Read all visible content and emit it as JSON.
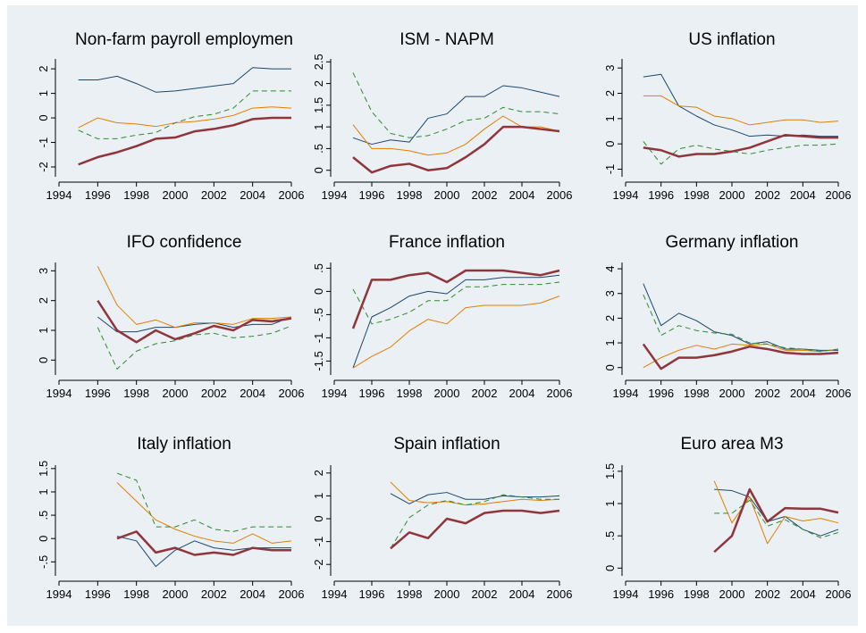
{
  "chart_data": [
    {
      "type": "line",
      "title": "Non-farm payroll employmen",
      "x": [
        1995,
        1996,
        1997,
        1998,
        1999,
        2000,
        2001,
        2002,
        2003,
        2004,
        2005,
        2006
      ],
      "xlim": [
        1994,
        2006
      ],
      "xticks": [
        1994,
        1996,
        1998,
        2000,
        2002,
        2004,
        2006
      ],
      "ylim": [
        -2.4,
        2.55
      ],
      "yticks": [
        -2,
        -1,
        0,
        1,
        2
      ],
      "series": [
        {
          "color": "#1a476f",
          "width": 1,
          "dash": false,
          "values": [
            1.55,
            1.55,
            1.7,
            1.4,
            1.05,
            1.1,
            1.2,
            1.3,
            1.4,
            2.05,
            2.0,
            2.0
          ]
        },
        {
          "color": "#e37e00",
          "width": 1,
          "dash": false,
          "values": [
            -0.4,
            0.0,
            -0.2,
            -0.25,
            -0.35,
            -0.2,
            -0.15,
            -0.05,
            0.1,
            0.4,
            0.45,
            0.4
          ]
        },
        {
          "color": "#2e8b2e",
          "width": 1,
          "dash": true,
          "values": [
            -0.5,
            -0.85,
            -0.85,
            -0.7,
            -0.6,
            -0.2,
            0.05,
            0.15,
            0.4,
            1.1,
            1.1,
            1.1
          ]
        },
        {
          "color": "#90353b",
          "width": 2.5,
          "dash": false,
          "values": [
            -1.9,
            -1.6,
            -1.4,
            -1.15,
            -0.85,
            -0.8,
            -0.55,
            -0.45,
            -0.3,
            -0.05,
            0.0,
            0.0
          ]
        }
      ]
    },
    {
      "type": "line",
      "title": "ISM - NAPM",
      "x": [
        1995,
        1996,
        1997,
        1998,
        1999,
        2000,
        2001,
        2002,
        2003,
        2004,
        2005,
        2006
      ],
      "xlim": [
        1994,
        2006
      ],
      "xticks": [
        1994,
        1996,
        1998,
        2000,
        2002,
        2004,
        2006
      ],
      "ylim": [
        -0.15,
        2.65
      ],
      "yticks": [
        0,
        {
          "value": 0.5,
          "label": ".5"
        },
        1,
        1.5,
        2,
        2.5
      ],
      "series": [
        {
          "color": "#1a476f",
          "width": 1,
          "dash": false,
          "values": [
            0.75,
            0.6,
            0.7,
            0.65,
            1.2,
            1.3,
            1.7,
            1.7,
            1.95,
            1.9,
            1.8,
            1.7
          ]
        },
        {
          "color": "#e37e00",
          "width": 1,
          "dash": false,
          "values": [
            1.05,
            0.5,
            0.5,
            0.45,
            0.35,
            0.4,
            0.6,
            0.95,
            1.25,
            1.0,
            1.0,
            0.9
          ]
        },
        {
          "color": "#2e8b2e",
          "width": 1,
          "dash": true,
          "values": [
            2.25,
            1.35,
            0.85,
            0.75,
            0.8,
            0.95,
            1.15,
            1.2,
            1.45,
            1.35,
            1.35,
            1.3
          ]
        },
        {
          "color": "#90353b",
          "width": 2.5,
          "dash": false,
          "values": [
            0.3,
            -0.05,
            0.1,
            0.15,
            0.0,
            0.05,
            0.3,
            0.6,
            1.0,
            1.0,
            0.95,
            0.9
          ]
        }
      ]
    },
    {
      "type": "line",
      "title": "US inflation",
      "x": [
        1995,
        1996,
        1997,
        1998,
        1999,
        2000,
        2001,
        2002,
        2003,
        2004,
        2005,
        2006
      ],
      "xlim": [
        1994,
        2006
      ],
      "xticks": [
        1994,
        1996,
        1998,
        2000,
        2002,
        2004,
        2006
      ],
      "ylim": [
        -1.3,
        3.5
      ],
      "yticks": [
        -1,
        0,
        1,
        2,
        3
      ],
      "series": [
        {
          "color": "#1a476f",
          "width": 1,
          "dash": false,
          "values": [
            2.65,
            2.75,
            1.5,
            1.1,
            0.75,
            0.55,
            0.3,
            0.35,
            0.3,
            0.35,
            0.3,
            0.3
          ]
        },
        {
          "color": "#e37e00",
          "width": 1,
          "dash": false,
          "values": [
            1.9,
            1.9,
            1.5,
            1.45,
            1.1,
            1.0,
            0.75,
            0.85,
            0.95,
            0.95,
            0.85,
            0.9
          ]
        },
        {
          "color": "#2e8b2e",
          "width": 1,
          "dash": true,
          "values": [
            0.1,
            -0.8,
            -0.2,
            -0.05,
            -0.2,
            -0.3,
            -0.4,
            -0.25,
            -0.15,
            -0.05,
            -0.05,
            0.0
          ]
        },
        {
          "color": "#90353b",
          "width": 2.5,
          "dash": false,
          "values": [
            -0.15,
            -0.25,
            -0.5,
            -0.4,
            -0.4,
            -0.3,
            -0.15,
            0.1,
            0.35,
            0.3,
            0.25,
            0.25
          ]
        }
      ]
    },
    {
      "type": "line",
      "title": "IFO confidence",
      "x": [
        1995,
        1996,
        1997,
        1998,
        1999,
        2000,
        2001,
        2002,
        2003,
        2004,
        2005,
        2006
      ],
      "xlim": [
        1994,
        2006
      ],
      "xticks": [
        1994,
        1996,
        1998,
        2000,
        2002,
        2004,
        2006
      ],
      "ylim": [
        -0.5,
        3.4
      ],
      "yticks": [
        0,
        1,
        2,
        3
      ],
      "series": [
        {
          "color": "#1a476f",
          "width": 1,
          "dash": false,
          "values": [
            null,
            1.45,
            0.95,
            0.95,
            1.1,
            1.1,
            1.2,
            1.25,
            1.1,
            1.2,
            1.2,
            1.45
          ]
        },
        {
          "color": "#e37e00",
          "width": 1,
          "dash": false,
          "values": [
            null,
            3.15,
            1.85,
            1.2,
            1.35,
            1.1,
            1.25,
            1.25,
            1.2,
            1.4,
            1.4,
            1.45
          ]
        },
        {
          "color": "#2e8b2e",
          "width": 1,
          "dash": true,
          "values": [
            null,
            1.1,
            -0.3,
            0.3,
            0.55,
            0.65,
            0.85,
            0.9,
            0.75,
            0.8,
            0.9,
            1.15
          ]
        },
        {
          "color": "#90353b",
          "width": 2.5,
          "dash": false,
          "values": [
            null,
            2.0,
            1.0,
            0.6,
            1.0,
            0.7,
            0.9,
            1.15,
            1.0,
            1.35,
            1.3,
            1.4
          ]
        }
      ]
    },
    {
      "type": "line",
      "title": "France inflation",
      "x": [
        1995,
        1996,
        1997,
        1998,
        1999,
        2000,
        2001,
        2002,
        2003,
        2004,
        2005,
        2006
      ],
      "xlim": [
        1994,
        2006
      ],
      "xticks": [
        1994,
        1996,
        1998,
        2000,
        2002,
        2004,
        2006
      ],
      "ylim": [
        -1.8,
        0.7
      ],
      "yticks": [
        -1.5,
        -1,
        {
          "value": -0.5,
          "label": "-.5"
        },
        0,
        {
          "value": 0.5,
          "label": ".5"
        }
      ],
      "series": [
        {
          "color": "#1a476f",
          "width": 1,
          "dash": false,
          "values": [
            -1.65,
            -0.55,
            -0.35,
            -0.1,
            0.0,
            -0.05,
            0.25,
            0.25,
            0.3,
            0.3,
            0.3,
            0.35
          ]
        },
        {
          "color": "#e37e00",
          "width": 1,
          "dash": false,
          "values": [
            -1.65,
            -1.4,
            -1.2,
            -0.85,
            -0.6,
            -0.7,
            -0.35,
            -0.3,
            -0.3,
            -0.3,
            -0.25,
            -0.1
          ]
        },
        {
          "color": "#2e8b2e",
          "width": 1,
          "dash": true,
          "values": [
            0.05,
            -0.7,
            -0.6,
            -0.45,
            -0.2,
            -0.2,
            0.1,
            0.1,
            0.15,
            0.15,
            0.15,
            0.2
          ]
        },
        {
          "color": "#90353b",
          "width": 2.5,
          "dash": false,
          "values": [
            -0.8,
            0.25,
            0.25,
            0.35,
            0.4,
            0.2,
            0.45,
            0.45,
            0.45,
            0.4,
            0.35,
            0.45
          ]
        }
      ]
    },
    {
      "type": "line",
      "title": "Germany inflation",
      "x": [
        1995,
        1996,
        1997,
        1998,
        1999,
        2000,
        2001,
        2002,
        2003,
        2004,
        2005,
        2006
      ],
      "xlim": [
        1994,
        2006
      ],
      "xticks": [
        1994,
        1996,
        1998,
        2000,
        2002,
        2004,
        2006
      ],
      "ylim": [
        -0.3,
        4.4
      ],
      "yticks": [
        0,
        1,
        2,
        3,
        4
      ],
      "series": [
        {
          "color": "#1a476f",
          "width": 1,
          "dash": false,
          "values": [
            3.4,
            1.7,
            2.2,
            1.9,
            1.45,
            1.3,
            0.95,
            1.05,
            0.75,
            0.75,
            0.7,
            0.7
          ]
        },
        {
          "color": "#e37e00",
          "width": 1,
          "dash": false,
          "values": [
            0.0,
            0.4,
            0.7,
            0.9,
            0.75,
            0.95,
            0.9,
            0.95,
            0.7,
            0.7,
            0.65,
            0.75
          ]
        },
        {
          "color": "#2e8b2e",
          "width": 1,
          "dash": true,
          "values": [
            2.95,
            1.3,
            1.7,
            1.5,
            1.4,
            1.35,
            1.0,
            0.95,
            0.8,
            0.75,
            0.65,
            0.75
          ]
        },
        {
          "color": "#90353b",
          "width": 2.5,
          "dash": false,
          "values": [
            0.95,
            -0.05,
            0.4,
            0.4,
            0.5,
            0.65,
            0.85,
            0.75,
            0.6,
            0.55,
            0.55,
            0.6
          ]
        }
      ]
    },
    {
      "type": "line",
      "title": "Italy inflation",
      "x": [
        1995,
        1996,
        1997,
        1998,
        1999,
        2000,
        2001,
        2002,
        2003,
        2004,
        2005,
        2006
      ],
      "xlim": [
        1994,
        2006
      ],
      "xticks": [
        1994,
        1996,
        1998,
        2000,
        2002,
        2004,
        2006
      ],
      "ylim": [
        -0.8,
        1.65
      ],
      "yticks": [
        {
          "value": -0.5,
          "label": "-.5"
        },
        0,
        {
          "value": 0.5,
          "label": ".5"
        },
        1,
        1.5
      ],
      "series": [
        {
          "color": "#1a476f",
          "width": 1,
          "dash": false,
          "values": [
            null,
            null,
            0.05,
            -0.05,
            -0.6,
            -0.25,
            -0.05,
            -0.2,
            -0.25,
            -0.2,
            -0.2,
            -0.2
          ]
        },
        {
          "color": "#e37e00",
          "width": 1,
          "dash": false,
          "values": [
            null,
            null,
            1.2,
            0.8,
            0.4,
            0.2,
            0.05,
            -0.05,
            -0.1,
            0.1,
            -0.1,
            -0.05
          ]
        },
        {
          "color": "#2e8b2e",
          "width": 1,
          "dash": true,
          "values": [
            null,
            null,
            1.4,
            1.25,
            0.25,
            0.25,
            0.4,
            0.2,
            0.15,
            0.25,
            0.25,
            0.25
          ]
        },
        {
          "color": "#90353b",
          "width": 2.5,
          "dash": false,
          "values": [
            null,
            null,
            0.0,
            0.15,
            -0.3,
            -0.2,
            -0.35,
            -0.3,
            -0.35,
            -0.2,
            -0.25,
            -0.25
          ]
        }
      ]
    },
    {
      "type": "line",
      "title": "Spain inflation",
      "x": [
        1995,
        1996,
        1997,
        1998,
        1999,
        2000,
        2001,
        2002,
        2003,
        2004,
        2005,
        2006
      ],
      "xlim": [
        1994,
        2006
      ],
      "xticks": [
        1994,
        1996,
        1998,
        2000,
        2002,
        2004,
        2006
      ],
      "ylim": [
        -2.5,
        2.5
      ],
      "yticks": [
        -2,
        -1,
        0,
        1,
        2
      ],
      "series": [
        {
          "color": "#1a476f",
          "width": 1,
          "dash": false,
          "values": [
            null,
            null,
            1.1,
            0.65,
            1.05,
            1.15,
            0.85,
            0.85,
            1.0,
            0.95,
            0.95,
            1.0
          ]
        },
        {
          "color": "#e37e00",
          "width": 1,
          "dash": false,
          "values": [
            null,
            null,
            1.6,
            0.8,
            0.7,
            0.75,
            0.6,
            0.65,
            0.75,
            0.85,
            0.8,
            0.85
          ]
        },
        {
          "color": "#2e8b2e",
          "width": 1,
          "dash": true,
          "values": [
            null,
            null,
            -1.3,
            0.05,
            0.6,
            0.8,
            0.6,
            0.75,
            1.05,
            0.95,
            0.85,
            0.85
          ]
        },
        {
          "color": "#90353b",
          "width": 2.5,
          "dash": false,
          "values": [
            null,
            null,
            -1.3,
            -0.6,
            -0.85,
            0.0,
            -0.2,
            0.25,
            0.35,
            0.35,
            0.25,
            0.35
          ]
        }
      ]
    },
    {
      "type": "line",
      "title": "Euro area M3",
      "x": [
        1995,
        1996,
        1997,
        1998,
        1999,
        2000,
        2001,
        2002,
        2003,
        2004,
        2005,
        2006
      ],
      "xlim": [
        1994,
        2006
      ],
      "xticks": [
        1994,
        1996,
        1998,
        2000,
        2002,
        2004,
        2006
      ],
      "ylim": [
        -0.12,
        1.65
      ],
      "yticks": [
        0,
        {
          "value": 0.5,
          "label": ".5"
        },
        1,
        1.5
      ],
      "series": [
        {
          "color": "#1a476f",
          "width": 1,
          "dash": false,
          "values": [
            null,
            null,
            null,
            null,
            1.22,
            1.2,
            1.1,
            0.72,
            0.8,
            0.6,
            0.5,
            0.6
          ]
        },
        {
          "color": "#e37e00",
          "width": 1,
          "dash": false,
          "values": [
            null,
            null,
            null,
            null,
            1.35,
            0.7,
            1.1,
            0.38,
            0.8,
            0.73,
            0.77,
            0.7
          ]
        },
        {
          "color": "#2e8b2e",
          "width": 1,
          "dash": true,
          "values": [
            null,
            null,
            null,
            null,
            0.85,
            0.85,
            1.05,
            0.65,
            0.75,
            0.6,
            0.47,
            0.55
          ]
        },
        {
          "color": "#90353b",
          "width": 2.5,
          "dash": false,
          "values": [
            null,
            null,
            null,
            null,
            0.25,
            0.5,
            1.22,
            0.72,
            0.93,
            0.92,
            0.92,
            0.86
          ]
        }
      ]
    }
  ]
}
